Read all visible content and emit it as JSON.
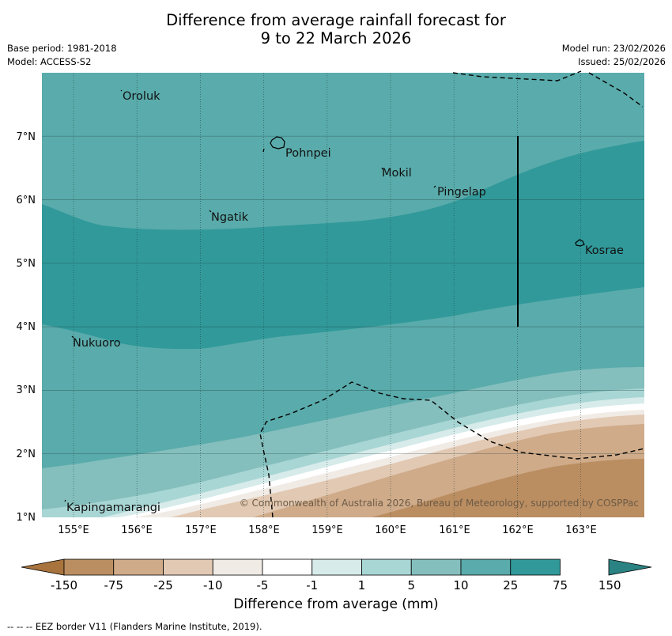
{
  "title": {
    "line1": "Difference from average rainfall forecast for",
    "line2": "9 to 22 March 2026"
  },
  "meta": {
    "base_period": "Base period: 1981-2018",
    "model": "Model: ACCESS-S2",
    "model_run": "Model run: 23/02/2026",
    "issued": "Issued: 25/02/2026"
  },
  "map": {
    "lat_ticks": [
      "1°N",
      "2°N",
      "3°N",
      "4°N",
      "5°N",
      "6°N",
      "7°N"
    ],
    "lon_ticks": [
      "155°E",
      "156°E",
      "157°E",
      "158°E",
      "159°E",
      "160°E",
      "161°E",
      "162°E",
      "163°E"
    ],
    "places": [
      "Oroluk",
      "Pohnpei",
      "Mokil",
      "Pingelap",
      "Ngatik",
      "Kosrae",
      "Nukuoro",
      "Kapingamarangi"
    ],
    "copyright": "© Commonwealth of Australia 2026, Bureau of Meteorology, supported by COSPPac"
  },
  "colorbar": {
    "labels": [
      "-150",
      "-75",
      "-25",
      "-10",
      "-5",
      "-1",
      "1",
      "5",
      "10",
      "25",
      "75",
      "150"
    ],
    "colors": [
      "#a8733c",
      "#bb8e62",
      "#cfab8a",
      "#e2c9b3",
      "#f1ebe6",
      "#ffffff",
      "#d6ebea",
      "#a8d6d4",
      "#84bfbd",
      "#5aabab",
      "#31999a",
      "#2b8282"
    ],
    "title": "Difference from average (mm)"
  },
  "eez_note": "--  --  -- EEZ border V11 (Flanders Marine Institute, 2019)."
}
